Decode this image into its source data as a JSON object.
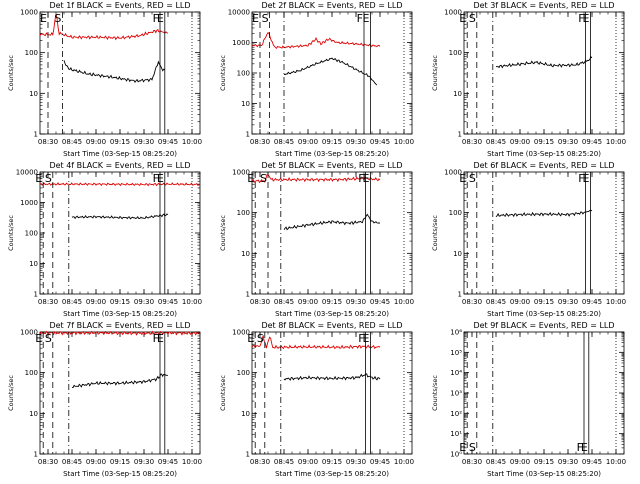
{
  "chart_data": [
    {
      "type": "line",
      "title": "Det 1f BLACK = Events, RED = LLD",
      "xlabel": "Start Time (03-Sep-15 08:25:20)",
      "ylabel": "Counts/sec",
      "scale": "log",
      "ylim": [
        1,
        1000
      ],
      "yticks": [
        "1",
        "10",
        "100",
        "1000"
      ],
      "xticks": [
        "08:30",
        "08:45",
        "09:00",
        "09:15",
        "09:30",
        "09:45",
        "10:00"
      ],
      "xlim": [
        "08:25",
        "10:05"
      ],
      "markers": [
        {
          "label": "E",
          "time": "08:30",
          "style": "dashed"
        },
        {
          "label": "S",
          "time": "08:39",
          "style": "dashdot"
        },
        {
          "label": "F",
          "time": "09:40",
          "style": "solid"
        },
        {
          "label": "E",
          "time": "09:43",
          "style": "solid"
        },
        {
          "time": "10:00",
          "style": "dotted"
        }
      ],
      "series": [
        {
          "color": "#e00000",
          "points": [
            [
              "08:25",
              280
            ],
            [
              "08:33",
              280
            ],
            [
              "08:35",
              900
            ],
            [
              "08:37",
              300
            ],
            [
              "08:45",
              240
            ],
            [
              "09:00",
              240
            ],
            [
              "09:15",
              230
            ],
            [
              "09:27",
              260
            ],
            [
              "09:38",
              350
            ],
            [
              "09:45",
              300
            ]
          ]
        },
        {
          "color": "#000000",
          "points": [
            [
              "08:40",
              60
            ],
            [
              "08:43",
              40
            ],
            [
              "08:55",
              30
            ],
            [
              "09:10",
              25
            ],
            [
              "09:25",
              20
            ],
            [
              "09:35",
              22
            ],
            [
              "09:39",
              60
            ],
            [
              "09:41",
              40
            ],
            [
              "09:43",
              38
            ]
          ]
        }
      ]
    },
    {
      "type": "line",
      "title": "Det 2f BLACK = Events, RED = LLD",
      "xlabel": "Start Time (03-Sep-15 08:25:20)",
      "ylabel": "Counts/sec",
      "scale": "log",
      "ylim": [
        1,
        10000
      ],
      "yticks": [
        "1",
        "10",
        "100",
        "1000",
        "10000"
      ],
      "xticks": [
        "08:30",
        "08:45",
        "09:00",
        "09:15",
        "09:30",
        "09:45",
        "10:00"
      ],
      "xlim": [
        "08:25",
        "10:05"
      ],
      "markers": [
        {
          "label": "E",
          "time": "08:30",
          "style": "dashed"
        },
        {
          "label": "S",
          "time": "08:36",
          "style": "dashed"
        },
        {
          "label": "F",
          "time": "09:35",
          "style": "solid"
        },
        {
          "label": "E",
          "time": "09:39",
          "style": "solid"
        },
        {
          "time": "08:45",
          "style": "dashdot"
        },
        {
          "time": "10:00",
          "style": "dotted"
        }
      ],
      "series": [
        {
          "color": "#e00000",
          "points": [
            [
              "08:25",
              800
            ],
            [
              "08:31",
              800
            ],
            [
              "08:35",
              2200
            ],
            [
              "08:39",
              700
            ],
            [
              "08:45",
              700
            ],
            [
              "09:00",
              800
            ],
            [
              "09:05",
              1300
            ],
            [
              "09:08",
              900
            ],
            [
              "09:13",
              1300
            ],
            [
              "09:18",
              1000
            ],
            [
              "09:30",
              900
            ],
            [
              "09:45",
              750
            ]
          ]
        },
        {
          "color": "#000000",
          "points": [
            [
              "08:45",
              90
            ],
            [
              "08:55",
              120
            ],
            [
              "09:05",
              200
            ],
            [
              "09:15",
              300
            ],
            [
              "09:22",
              220
            ],
            [
              "09:30",
              130
            ],
            [
              "09:38",
              80
            ],
            [
              "09:43",
              40
            ]
          ]
        }
      ]
    },
    {
      "type": "line",
      "title": "Det 3f BLACK = Events, RED = LLD",
      "xlabel": "Start Time (03-Sep-15 08:25:20)",
      "ylabel": "Counts/sec",
      "scale": "log",
      "ylim": [
        1,
        1000
      ],
      "yticks": [
        "1",
        "10",
        "100",
        "1000"
      ],
      "xticks": [
        "08:30",
        "08:45",
        "09:00",
        "09:15",
        "09:30",
        "09:45",
        "10:00"
      ],
      "xlim": [
        "08:25",
        "10:05"
      ],
      "markers": [
        {
          "label": "E",
          "time": "08:27",
          "style": "dashed"
        },
        {
          "label": "S",
          "time": "08:33",
          "style": "dashed"
        },
        {
          "label": "F",
          "time": "09:41",
          "style": "solid"
        },
        {
          "label": "E",
          "time": "09:44",
          "style": "solid"
        },
        {
          "time": "08:43",
          "style": "dashdot"
        },
        {
          "time": "10:00",
          "style": "dotted"
        }
      ],
      "series": [
        {
          "color": "#000000",
          "points": [
            [
              "08:45",
              45
            ],
            [
              "09:00",
              52
            ],
            [
              "09:10",
              58
            ],
            [
              "09:20",
              48
            ],
            [
              "09:35",
              50
            ],
            [
              "09:41",
              60
            ],
            [
              "09:45",
              75
            ]
          ]
        }
      ]
    },
    {
      "type": "line",
      "title": "Det 4f BLACK = Events, RED = LLD",
      "xlabel": "Start Time (03-Sep-15 08:25:20)",
      "ylabel": "Counts/sec",
      "scale": "log",
      "ylim": [
        1,
        10000
      ],
      "yticks": [
        "1",
        "10",
        "100",
        "1000",
        "10000"
      ],
      "xticks": [
        "08:30",
        "08:45",
        "09:00",
        "09:15",
        "09:30",
        "09:45",
        "10:00"
      ],
      "xlim": [
        "08:25",
        "10:05"
      ],
      "markers": [
        {
          "label": "E",
          "time": "08:27",
          "style": "dashed"
        },
        {
          "label": "S",
          "time": "08:33",
          "style": "dashed"
        },
        {
          "label": "F",
          "time": "09:40",
          "style": "solid"
        },
        {
          "label": "E",
          "time": "09:43",
          "style": "solid"
        },
        {
          "time": "08:43",
          "style": "dashdot"
        },
        {
          "time": "10:00",
          "style": "dotted"
        }
      ],
      "series": [
        {
          "color": "#e00000",
          "points": [
            [
              "08:25",
              4000
            ],
            [
              "09:00",
              4000
            ],
            [
              "09:30",
              3900
            ],
            [
              "09:45",
              4000
            ],
            [
              "10:05",
              3900
            ]
          ]
        },
        {
          "color": "#000000",
          "points": [
            [
              "08:45",
              330
            ],
            [
              "09:00",
              340
            ],
            [
              "09:15",
              320
            ],
            [
              "09:30",
              310
            ],
            [
              "09:38",
              360
            ],
            [
              "09:45",
              400
            ]
          ]
        }
      ]
    },
    {
      "type": "line",
      "title": "Det 5f BLACK = Events, RED = LLD",
      "xlabel": "Start Time (03-Sep-15 08:25:20)",
      "ylabel": "Counts/sec",
      "scale": "log",
      "ylim": [
        1,
        1000
      ],
      "yticks": [
        "1",
        "10",
        "100",
        "1000"
      ],
      "xticks": [
        "08:30",
        "08:45",
        "09:00",
        "09:15",
        "09:30",
        "09:45",
        "10:00"
      ],
      "xlim": [
        "08:25",
        "10:05"
      ],
      "markers": [
        {
          "label": "E",
          "time": "08:27",
          "style": "dashed"
        },
        {
          "label": "S",
          "time": "08:35",
          "style": "dashed"
        },
        {
          "label": "F",
          "time": "09:36",
          "style": "solid"
        },
        {
          "label": "E",
          "time": "09:39",
          "style": "solid"
        },
        {
          "time": "08:43",
          "style": "dashdot"
        },
        {
          "time": "10:00",
          "style": "dotted"
        }
      ],
      "series": [
        {
          "color": "#e00000",
          "points": [
            [
              "08:25",
              600
            ],
            [
              "08:33",
              600
            ],
            [
              "08:35",
              900
            ],
            [
              "08:37",
              650
            ],
            [
              "09:00",
              650
            ],
            [
              "09:20",
              650
            ],
            [
              "09:35",
              700
            ],
            [
              "09:45",
              650
            ]
          ]
        },
        {
          "color": "#000000",
          "points": [
            [
              "08:45",
              40
            ],
            [
              "09:00",
              50
            ],
            [
              "09:15",
              60
            ],
            [
              "09:25",
              55
            ],
            [
              "09:34",
              60
            ],
            [
              "09:37",
              90
            ],
            [
              "09:40",
              60
            ],
            [
              "09:45",
              55
            ]
          ]
        }
      ]
    },
    {
      "type": "line",
      "title": "Det 6f BLACK = Events, RED = LLD",
      "xlabel": "Start Time (03-Sep-15 08:25:20)",
      "ylabel": "Counts/sec",
      "scale": "log",
      "ylim": [
        1,
        1000
      ],
      "yticks": [
        "1",
        "10",
        "100",
        "1000"
      ],
      "xticks": [
        "08:30",
        "08:45",
        "09:00",
        "09:15",
        "09:30",
        "09:45",
        "10:00"
      ],
      "xlim": [
        "08:25",
        "10:05"
      ],
      "markers": [
        {
          "label": "E",
          "time": "08:27",
          "style": "dashed"
        },
        {
          "label": "S",
          "time": "08:33",
          "style": "dashed"
        },
        {
          "label": "F",
          "time": "09:41",
          "style": "solid"
        },
        {
          "label": "E",
          "time": "09:44",
          "style": "solid"
        },
        {
          "time": "08:43",
          "style": "dashdot"
        },
        {
          "time": "10:00",
          "style": "dotted"
        }
      ],
      "series": [
        {
          "color": "#000000",
          "points": [
            [
              "08:45",
              85
            ],
            [
              "09:00",
              90
            ],
            [
              "09:15",
              92
            ],
            [
              "09:30",
              90
            ],
            [
              "09:40",
              100
            ],
            [
              "09:45",
              115
            ]
          ]
        }
      ]
    },
    {
      "type": "line",
      "title": "Det 7f BLACK = Events, RED = LLD",
      "xlabel": "Start Time (03-Sep-15 08:25:20)",
      "ylabel": "Counts/sec",
      "scale": "log",
      "ylim": [
        1,
        1000
      ],
      "yticks": [
        "1",
        "10",
        "100",
        "1000"
      ],
      "xticks": [
        "08:30",
        "08:45",
        "09:00",
        "09:15",
        "09:30",
        "09:45",
        "10:00"
      ],
      "xlim": [
        "08:25",
        "10:05"
      ],
      "markers": [
        {
          "label": "E",
          "time": "08:27",
          "style": "dashed"
        },
        {
          "label": "S",
          "time": "08:33",
          "style": "dashed"
        },
        {
          "label": "F",
          "time": "09:40",
          "style": "solid"
        },
        {
          "label": "E",
          "time": "09:43",
          "style": "solid"
        },
        {
          "time": "08:43",
          "style": "dashdot"
        },
        {
          "time": "10:00",
          "style": "dotted"
        }
      ],
      "series": [
        {
          "color": "#e00000",
          "points": [
            [
              "08:25",
              950
            ],
            [
              "09:00",
              950
            ],
            [
              "09:30",
              930
            ],
            [
              "09:45",
              950
            ],
            [
              "10:05",
              930
            ]
          ]
        },
        {
          "color": "#000000",
          "points": [
            [
              "08:45",
              45
            ],
            [
              "09:00",
              55
            ],
            [
              "09:15",
              55
            ],
            [
              "09:30",
              60
            ],
            [
              "09:38",
              70
            ],
            [
              "09:41",
              90
            ],
            [
              "09:45",
              85
            ]
          ]
        }
      ]
    },
    {
      "type": "line",
      "title": "Det 8f BLACK = Events, RED = LLD",
      "xlabel": "Start Time (03-Sep-15 08:25:20)",
      "ylabel": "Counts/sec",
      "scale": "log",
      "ylim": [
        1,
        1000
      ],
      "yticks": [
        "1",
        "10",
        "100",
        "1000"
      ],
      "xticks": [
        "08:30",
        "08:45",
        "09:00",
        "09:15",
        "09:30",
        "09:45",
        "10:00"
      ],
      "xlim": [
        "08:25",
        "10:05"
      ],
      "markers": [
        {
          "label": "E",
          "time": "08:27",
          "style": "dashed"
        },
        {
          "label": "S",
          "time": "08:33",
          "style": "dashed"
        },
        {
          "label": "F",
          "time": "09:36",
          "style": "solid"
        },
        {
          "label": "E",
          "time": "09:39",
          "style": "solid"
        },
        {
          "time": "08:43",
          "style": "dashdot"
        },
        {
          "time": "10:00",
          "style": "dotted"
        }
      ],
      "series": [
        {
          "color": "#e00000",
          "points": [
            [
              "08:25",
              450
            ],
            [
              "08:30",
              450
            ],
            [
              "08:32",
              800
            ],
            [
              "08:34",
              400
            ],
            [
              "08:36",
              800
            ],
            [
              "08:38",
              420
            ],
            [
              "09:00",
              430
            ],
            [
              "09:20",
              420
            ],
            [
              "09:35",
              440
            ],
            [
              "09:45",
              420
            ]
          ]
        },
        {
          "color": "#000000",
          "points": [
            [
              "08:45",
              70
            ],
            [
              "09:00",
              75
            ],
            [
              "09:15",
              72
            ],
            [
              "09:30",
              75
            ],
            [
              "09:36",
              90
            ],
            [
              "09:40",
              75
            ],
            [
              "09:45",
              70
            ]
          ]
        }
      ]
    },
    {
      "type": "line",
      "title": "Det 9f BLACK = Events, RED = LLD",
      "xlabel": "Start Time (03-Sep-15 08:25:20)",
      "ylabel": "Counts/sec",
      "scale": "log",
      "ylim": [
        1,
        1000000
      ],
      "yticks": [
        "10⁰",
        "10¹",
        "10²",
        "10³",
        "10⁴",
        "10⁵",
        "10⁶"
      ],
      "xticks": [
        "08:30",
        "08:45",
        "09:00",
        "09:15",
        "09:30",
        "09:45",
        "10:00"
      ],
      "xlim": [
        "08:25",
        "10:05"
      ],
      "markers": [
        {
          "label": "E",
          "time": "08:27",
          "style": "dashed",
          "label_pos": "bottom"
        },
        {
          "label": "S",
          "time": "08:33",
          "style": "dashed",
          "label_pos": "bottom"
        },
        {
          "label": "F",
          "time": "09:40",
          "style": "solid",
          "label_pos": "bottom"
        },
        {
          "label": "E",
          "time": "09:43",
          "style": "solid",
          "label_pos": "bottom"
        },
        {
          "time": "08:43",
          "style": "dashdot"
        },
        {
          "time": "10:00",
          "style": "dotted"
        }
      ],
      "series": []
    }
  ]
}
